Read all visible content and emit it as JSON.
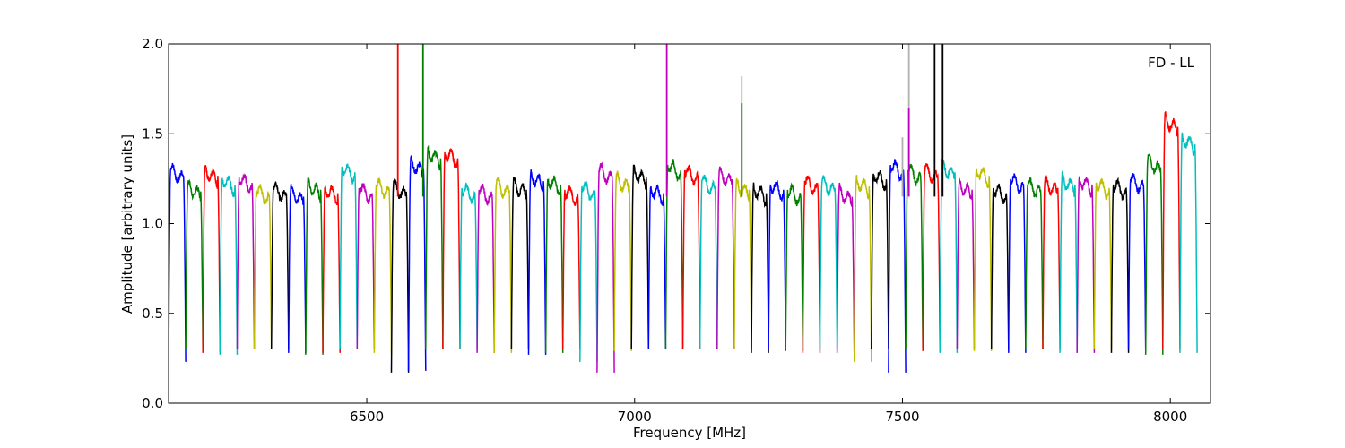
{
  "chart_data": {
    "type": "line",
    "title": "",
    "xlabel": "Frequency [MHz]",
    "ylabel": "Amplitude [arbitrary units]",
    "xlim": [
      6130,
      8075
    ],
    "ylim": [
      0.0,
      2.0
    ],
    "xticks": [
      6500,
      7000,
      7500,
      8000
    ],
    "yticks": [
      0.0,
      0.5,
      1.0,
      1.5,
      2.0
    ],
    "xtick_labels": [
      "6500",
      "7000",
      "7500",
      "8000"
    ],
    "ytick_labels": [
      "0.0",
      "0.5",
      "1.0",
      "1.5",
      "2.0"
    ],
    "grid": false,
    "annotation": "FD - LL",
    "color_cycle": [
      "#0000ff",
      "#008000",
      "#ff0000",
      "#00bfbf",
      "#bf00bf",
      "#bfbf00",
      "#000000"
    ],
    "channel_width_mhz": 32,
    "n_channels": 60,
    "band_start_mhz": 6130,
    "channel_peak_amplitudes": [
      1.3,
      1.21,
      1.3,
      1.25,
      1.26,
      1.19,
      1.2,
      1.18,
      1.22,
      1.2,
      1.32,
      1.2,
      1.22,
      1.21,
      1.34,
      1.4,
      1.4,
      1.2,
      1.19,
      1.22,
      1.22,
      1.27,
      1.25,
      1.19,
      1.21,
      1.3,
      1.25,
      1.29,
      1.2,
      1.33,
      1.3,
      1.24,
      1.28,
      1.22,
      1.2,
      1.22,
      1.19,
      1.24,
      1.23,
      1.18,
      1.24,
      1.28,
      1.33,
      1.3,
      1.3,
      1.32,
      1.22,
      1.3,
      1.2,
      1.25,
      1.22,
      1.23,
      1.25,
      1.25,
      1.23,
      1.22,
      1.25,
      1.35,
      1.58,
      1.48
    ],
    "channel_min_amplitudes": [
      0.23,
      0.3,
      0.28,
      0.27,
      0.3,
      0.3,
      0.3,
      0.28,
      0.27,
      0.28,
      0.3,
      0.3,
      0.28,
      0.17,
      0.18,
      0.3,
      0.3,
      0.3,
      0.28,
      0.28,
      0.3,
      0.27,
      0.28,
      0.3,
      0.23,
      0.17,
      0.29,
      0.3,
      0.3,
      0.3,
      0.3,
      0.3,
      0.3,
      0.3,
      0.28,
      0.3,
      0.29,
      0.28,
      0.3,
      0.28,
      0.23,
      0.3,
      0.17,
      0.3,
      0.29,
      0.28,
      0.3,
      0.29,
      0.3,
      0.28,
      0.3,
      0.3,
      0.28,
      0.28,
      0.3,
      0.28,
      0.3,
      0.27,
      0.3,
      0.28
    ],
    "spikes": [
      {
        "x": 6558,
        "y": 2.0,
        "color": "#ff0000"
      },
      {
        "x": 6605,
        "y": 2.0,
        "color": "#008000"
      },
      {
        "x": 7060,
        "y": 2.0,
        "color": "#bf00bf"
      },
      {
        "x": 7200,
        "y": 1.82,
        "color": "#b0b0b0"
      },
      {
        "x": 7200,
        "y": 1.67,
        "color": "#008000"
      },
      {
        "x": 7500,
        "y": 1.48,
        "color": "#b0b0b0"
      },
      {
        "x": 7512,
        "y": 2.0,
        "color": "#b0b0b0"
      },
      {
        "x": 7512,
        "y": 1.64,
        "color": "#bf00bf"
      },
      {
        "x": 7560,
        "y": 2.0,
        "color": "#000000"
      },
      {
        "x": 7575,
        "y": 2.0,
        "color": "#000000"
      }
    ]
  }
}
